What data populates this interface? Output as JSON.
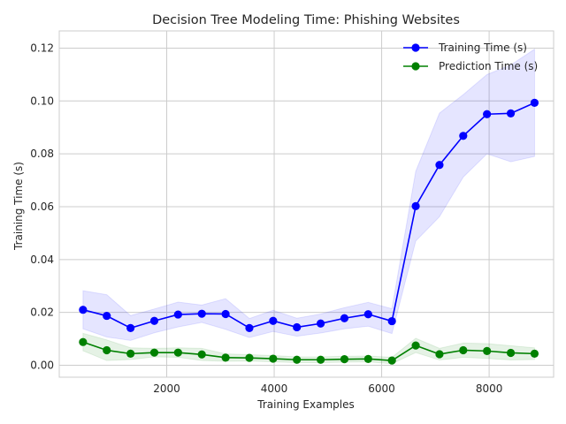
{
  "chart_data": {
    "type": "line",
    "title": "Decision Tree Modeling Time: Phishing Websites",
    "xlabel": "Training Examples",
    "ylabel": "Training Time (s)",
    "xlim": [
      0,
      9200
    ],
    "ylim": [
      -0.0045,
      0.1265
    ],
    "xticks": [
      2000,
      4000,
      6000,
      8000
    ],
    "xtick_labels": [
      "2000",
      "4000",
      "6000",
      "8000"
    ],
    "yticks": [
      0.0,
      0.02,
      0.04,
      0.06,
      0.08,
      0.1,
      0.12
    ],
    "ytick_labels": [
      "0.00",
      "0.02",
      "0.04",
      "0.06",
      "0.08",
      "0.10",
      "0.12"
    ],
    "grid": true,
    "legend_position": "upper-right",
    "x": [
      442,
      884,
      1327,
      1769,
      2211,
      2653,
      3096,
      3538,
      3980,
      4422,
      4865,
      5307,
      5749,
      6191,
      6634,
      7076,
      7518,
      7960,
      8403,
      8845
    ],
    "series": [
      {
        "name": "Training Time (s)",
        "color": "#0000ff",
        "values": [
          0.021,
          0.0187,
          0.0141,
          0.0168,
          0.0192,
          0.0195,
          0.0194,
          0.0141,
          0.0168,
          0.0144,
          0.0158,
          0.0178,
          0.0193,
          0.0167,
          0.0602,
          0.0758,
          0.0868,
          0.095,
          0.0953,
          0.0993
        ],
        "band_lower": [
          0.0138,
          0.0107,
          0.0094,
          0.0123,
          0.0145,
          0.0162,
          0.0136,
          0.0105,
          0.0128,
          0.011,
          0.0122,
          0.0138,
          0.0148,
          0.012,
          0.047,
          0.0562,
          0.0712,
          0.08,
          0.077,
          0.079
        ],
        "band_upper": [
          0.0282,
          0.0267,
          0.0188,
          0.0213,
          0.0239,
          0.0228,
          0.0252,
          0.0177,
          0.0208,
          0.0178,
          0.0194,
          0.0218,
          0.0238,
          0.0214,
          0.0734,
          0.0954,
          0.1024,
          0.11,
          0.1136,
          0.1196
        ]
      },
      {
        "name": "Prediction Time (s)",
        "color": "#008000",
        "values": [
          0.0088,
          0.0057,
          0.0044,
          0.0048,
          0.0048,
          0.0041,
          0.0029,
          0.0028,
          0.0025,
          0.0021,
          0.0021,
          0.0023,
          0.0024,
          0.0018,
          0.0075,
          0.0042,
          0.0057,
          0.0054,
          0.0047,
          0.0044
        ],
        "band_lower": [
          0.0055,
          0.0018,
          0.0022,
          0.0032,
          0.003,
          0.0018,
          0.0015,
          0.0016,
          0.0013,
          0.001,
          0.001,
          0.0012,
          0.0013,
          0.0006,
          0.0048,
          0.002,
          0.003,
          0.0026,
          0.002,
          0.0022
        ],
        "band_upper": [
          0.0121,
          0.0096,
          0.0066,
          0.0064,
          0.0066,
          0.0064,
          0.0043,
          0.004,
          0.0037,
          0.0032,
          0.0032,
          0.0034,
          0.0035,
          0.003,
          0.0102,
          0.0064,
          0.0084,
          0.0082,
          0.0074,
          0.0066
        ]
      }
    ]
  }
}
